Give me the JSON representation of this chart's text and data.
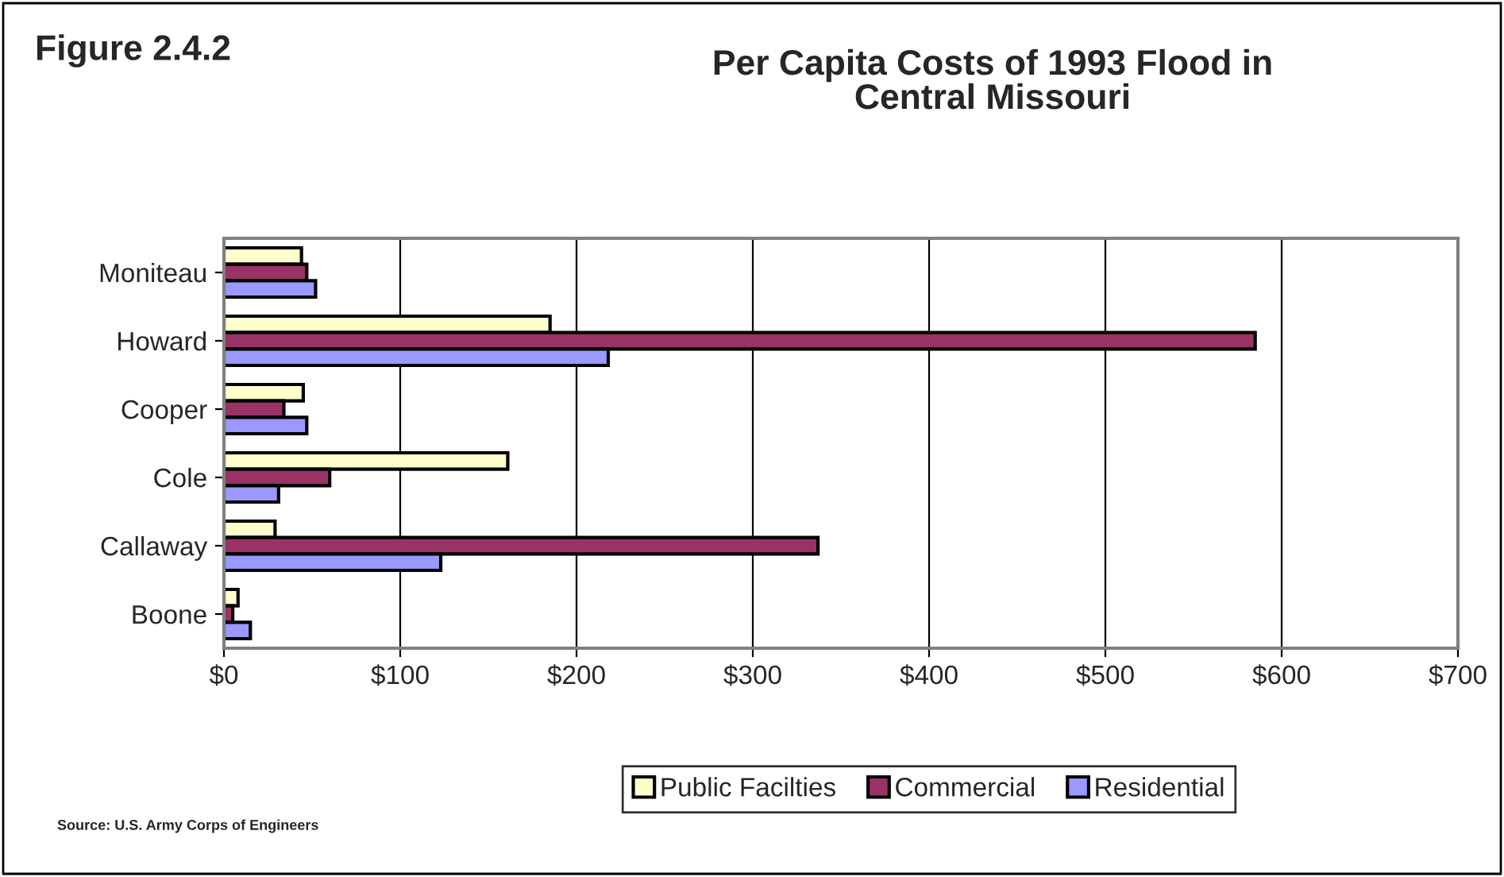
{
  "chart_data": {
    "type": "bar",
    "orientation": "horizontal",
    "title": "Per Capita Costs of 1993 Flood in\nCentral Missouri",
    "annotations": [
      "Figure 2.4.2",
      "Source: U.S. Army Corps of Engineers"
    ],
    "categories": [
      "Moniteau",
      "Howard",
      "Cooper",
      "Cole",
      "Callaway",
      "Boone"
    ],
    "series": [
      {
        "name": "Public Facilties",
        "color": "#ffffcc",
        "values": [
          44,
          185,
          45,
          161,
          29,
          8
        ]
      },
      {
        "name": "Commercial",
        "color": "#993366",
        "values": [
          47,
          585,
          34,
          60,
          337,
          5
        ]
      },
      {
        "name": "Residential",
        "color": "#9999ff",
        "values": [
          52,
          218,
          47,
          31,
          123,
          15
        ]
      }
    ],
    "xlim": [
      0,
      700
    ],
    "xticks": [
      {
        "value": 0,
        "label": "$0"
      },
      {
        "value": 100,
        "label": "$100"
      },
      {
        "value": 200,
        "label": "$200"
      },
      {
        "value": 300,
        "label": "$300"
      },
      {
        "value": 400,
        "label": "$400"
      },
      {
        "value": 500,
        "label": "$500"
      },
      {
        "value": 600,
        "label": "$600"
      },
      {
        "value": 700,
        "label": "$700"
      }
    ],
    "grid": "x",
    "legend": "bottom"
  }
}
